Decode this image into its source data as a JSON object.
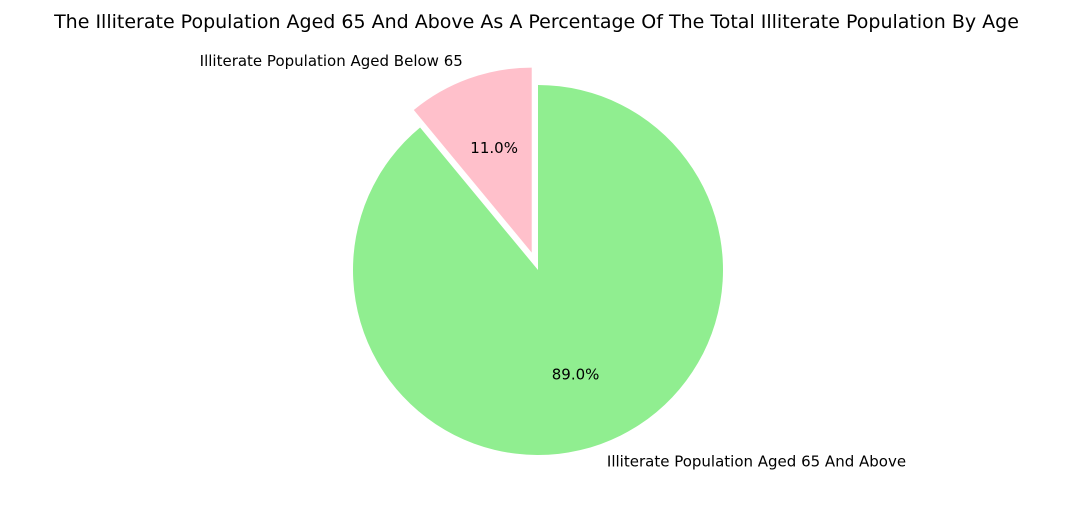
{
  "chart_data": {
    "type": "pie",
    "title": "The Illiterate Population Aged 65 And Above As A Percentage Of The Total Illiterate Population By Age",
    "slices": [
      {
        "label": "Illiterate Population Aged Below 65",
        "value": 11.0,
        "pct_label": "11.0%",
        "color": "#FFC0CB",
        "exploded": true
      },
      {
        "label": "Illiterate Population Aged 65 And Above",
        "value": 89.0,
        "pct_label": "89.0%",
        "color": "#90EE90",
        "exploded": false
      }
    ]
  }
}
